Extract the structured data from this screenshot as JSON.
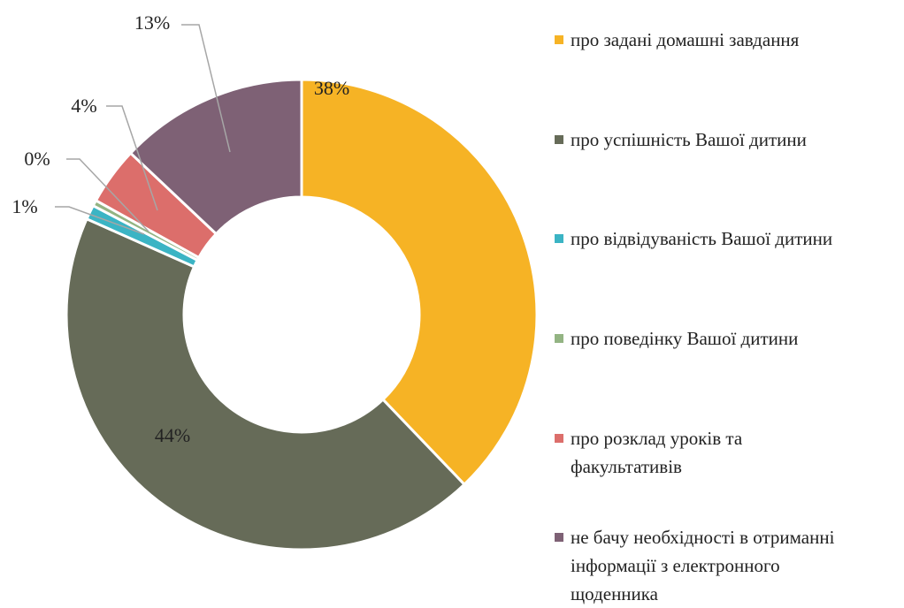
{
  "chart_data": {
    "type": "donut",
    "categories": [
      "про задані домашні завдання",
      "про успішність Вашої дитини",
      "про відвідуваність Вашої дитини",
      "про поведінку Вашої дитини",
      "про розклад уроків та факультативів",
      "не бачу необхідності в отриманні інформації з електронного щоденника"
    ],
    "values": [
      38,
      44,
      1,
      0.4,
      4,
      13
    ],
    "value_labels": [
      "38%",
      "44%",
      "1%",
      "0%",
      "4%",
      "13%"
    ],
    "colors": [
      "#F6B325",
      "#666B58",
      "#3BB4C4",
      "#93B483",
      "#DC6E6B",
      "#7E6175"
    ],
    "legend": "right"
  }
}
